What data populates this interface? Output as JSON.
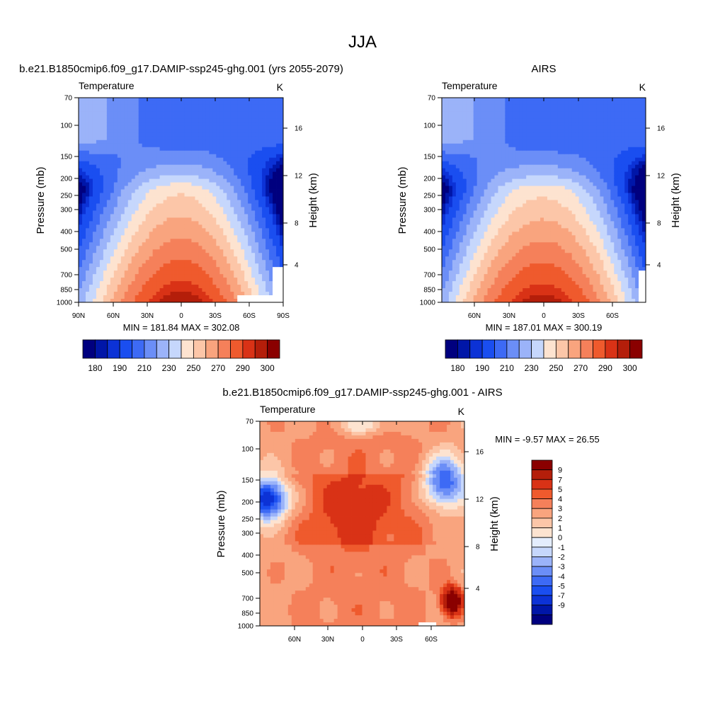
{
  "figure": {
    "title": "JJA"
  },
  "colors": {
    "temperature_levels": [
      "#00007f",
      "#0016a8",
      "#0c32d6",
      "#1a4ef0",
      "#3d6af5",
      "#6b8ef7",
      "#9bb3f9",
      "#c6d7fc",
      "#fde3d0",
      "#fcc6a8",
      "#f9a47e",
      "#f5805a",
      "#ef5a2d",
      "#d93216",
      "#b41e0a",
      "#8a0000"
    ],
    "difference_levels": [
      "#00007f",
      "#0016a8",
      "#0c32d6",
      "#1a4ef0",
      "#3d6af5",
      "#6b8ef7",
      "#9bb3f9",
      "#c6d7fc",
      "#e4edfd",
      "#fde3d0",
      "#fcc6a8",
      "#f9a47e",
      "#f5805a",
      "#ef5a2d",
      "#d93216",
      "#b41e0a",
      "#8a0000"
    ]
  },
  "chart_data": [
    {
      "type": "heatmap",
      "title": "b.e21.B1850cmip6.f09_g17.DAMIP-ssp245-ghg.001 (yrs 2055-2079)",
      "left_label": "Temperature",
      "unit_label": "K",
      "ylabel": "Pressure (mb)",
      "ylabel_right": "Height (km)",
      "x_ticks": [
        "90N",
        "60N",
        "30N",
        "0",
        "30S",
        "60S",
        "90S"
      ],
      "y_ticks": [
        "70",
        "100",
        "150",
        "200",
        "250",
        "300",
        "400",
        "500",
        "700",
        "850",
        "1000"
      ],
      "y_ticks_right": [
        "16",
        "12",
        "8",
        "4"
      ],
      "xlim": [
        90,
        -90
      ],
      "ylim": [
        1000,
        70
      ],
      "stats": "MIN = 181.84  MAX = 302.08",
      "min": 181.84,
      "max": 302.08,
      "colorbar_labels": [
        "180",
        "190",
        "210",
        "230",
        "250",
        "270",
        "290",
        "300"
      ]
    },
    {
      "type": "heatmap",
      "title": "AIRS",
      "left_label": "Temperature",
      "unit_label": "K",
      "ylabel": "Pressure (mb)",
      "ylabel_right": "Height (km)",
      "x_ticks": [
        "60N",
        "30N",
        "0",
        "30S",
        "60S"
      ],
      "y_ticks": [
        "70",
        "100",
        "150",
        "200",
        "250",
        "300",
        "400",
        "500",
        "700",
        "850",
        "1000"
      ],
      "y_ticks_right": [
        "16",
        "12",
        "8",
        "4"
      ],
      "xlim": [
        82,
        -82
      ],
      "ylim": [
        1000,
        70
      ],
      "stats": "MIN = 187.01  MAX = 300.19",
      "min": 187.01,
      "max": 300.19,
      "colorbar_labels": [
        "180",
        "190",
        "210",
        "230",
        "250",
        "270",
        "290",
        "300"
      ]
    },
    {
      "type": "heatmap",
      "title": "b.e21.B1850cmip6.f09_g17.DAMIP-ssp245-ghg.001 - AIRS",
      "left_label": "Temperature",
      "unit_label": "K",
      "ylabel": "Pressure (mb)",
      "ylabel_right": "Height (km)",
      "x_ticks": [
        "60N",
        "30N",
        "0",
        "30S",
        "60S"
      ],
      "y_ticks": [
        "70",
        "100",
        "150",
        "200",
        "250",
        "300",
        "400",
        "500",
        "700",
        "850",
        "1000"
      ],
      "y_ticks_right": [
        "16",
        "12",
        "8",
        "4"
      ],
      "xlim": [
        82,
        -82
      ],
      "ylim": [
        1000,
        70
      ],
      "stats": "MIN =  -9.57  MAX =  26.55",
      "min": -9.57,
      "max": 26.55,
      "colorbar_labels": [
        "9",
        "7",
        "5",
        "4",
        "3",
        "2",
        "1",
        "0",
        "-1",
        "-2",
        "-3",
        "-4",
        "-5",
        "-7",
        "-9"
      ]
    }
  ]
}
